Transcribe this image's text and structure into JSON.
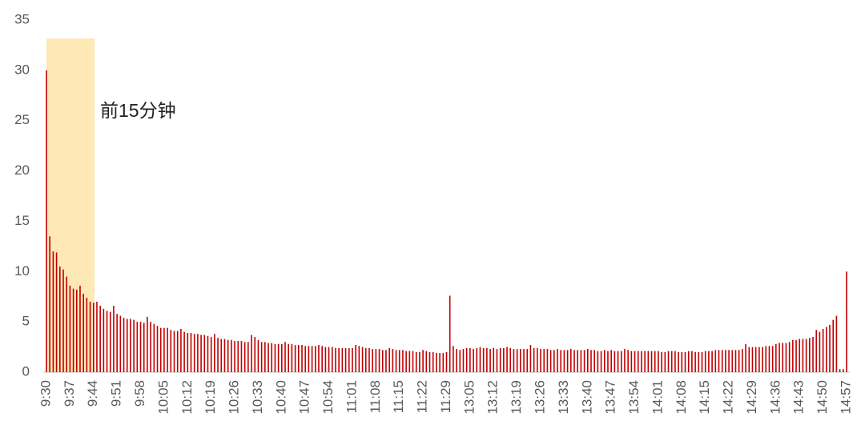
{
  "chart_data": {
    "type": "bar",
    "annotation": "前15分钟",
    "color": "#c00000",
    "categories": [
      "9:30",
      null,
      null,
      null,
      null,
      null,
      null,
      "9:37",
      null,
      null,
      null,
      null,
      null,
      null,
      "9:44",
      null,
      null,
      null,
      null,
      null,
      null,
      "9:51",
      null,
      null,
      null,
      null,
      null,
      null,
      "9:58",
      null,
      null,
      null,
      null,
      null,
      null,
      "10:05",
      null,
      null,
      null,
      null,
      null,
      null,
      "10:12",
      null,
      null,
      null,
      null,
      null,
      null,
      "10:19",
      null,
      null,
      null,
      null,
      null,
      null,
      "10:26",
      null,
      null,
      null,
      null,
      null,
      null,
      "10:33",
      null,
      null,
      null,
      null,
      null,
      null,
      "10:40",
      null,
      null,
      null,
      null,
      null,
      null,
      "10:47",
      null,
      null,
      null,
      null,
      null,
      null,
      "10:54",
      null,
      null,
      null,
      null,
      null,
      null,
      "11:01",
      null,
      null,
      null,
      null,
      null,
      null,
      "11:08",
      null,
      null,
      null,
      null,
      null,
      null,
      "11:15",
      null,
      null,
      null,
      null,
      null,
      null,
      "11:22",
      null,
      null,
      null,
      null,
      null,
      null,
      "11:29",
      null,
      null,
      null,
      null,
      null,
      null,
      "13:05",
      null,
      null,
      null,
      null,
      null,
      null,
      "13:12",
      null,
      null,
      null,
      null,
      null,
      null,
      "13:19",
      null,
      null,
      null,
      null,
      null,
      null,
      "13:26",
      null,
      null,
      null,
      null,
      null,
      null,
      "13:33",
      null,
      null,
      null,
      null,
      null,
      null,
      "13:40",
      null,
      null,
      null,
      null,
      null,
      null,
      "13:47",
      null,
      null,
      null,
      null,
      null,
      null,
      "13:54",
      null,
      null,
      null,
      null,
      null,
      null,
      "14:01",
      null,
      null,
      null,
      null,
      null,
      null,
      "14:08",
      null,
      null,
      null,
      null,
      null,
      null,
      "14:15",
      null,
      null,
      null,
      null,
      null,
      null,
      "14:22",
      null,
      null,
      null,
      null,
      null,
      null,
      "14:29",
      null,
      null,
      null,
      null,
      null,
      null,
      "14:36",
      null,
      null,
      null,
      null,
      null,
      null,
      "14:43",
      null,
      null,
      null,
      null,
      null,
      null,
      "14:50",
      null,
      null,
      null,
      null,
      null,
      null,
      "14:57"
    ],
    "values": [
      30,
      13.5,
      12,
      11.9,
      10.5,
      10.2,
      9.5,
      8.6,
      8.3,
      8.2,
      8.6,
      7.8,
      7.4,
      7.0,
      6.9,
      7.0,
      6.6,
      6.3,
      6.1,
      6.0,
      6.6,
      5.8,
      5.6,
      5.4,
      5.3,
      5.3,
      5.2,
      5.0,
      5.0,
      4.9,
      5.5,
      5.0,
      4.8,
      4.6,
      4.4,
      4.4,
      4.4,
      4.2,
      4.1,
      4.1,
      4.3,
      4.0,
      3.9,
      3.9,
      3.8,
      3.8,
      3.7,
      3.7,
      3.6,
      3.5,
      3.8,
      3.4,
      3.3,
      3.3,
      3.2,
      3.2,
      3.1,
      3.1,
      3.1,
      3.0,
      3.0,
      3.7,
      3.5,
      3.2,
      3.0,
      3.0,
      2.9,
      2.9,
      2.8,
      2.8,
      2.8,
      3.0,
      2.8,
      2.8,
      2.7,
      2.7,
      2.7,
      2.6,
      2.6,
      2.6,
      2.6,
      2.7,
      2.6,
      2.5,
      2.5,
      2.5,
      2.4,
      2.4,
      2.4,
      2.4,
      2.4,
      2.4,
      2.7,
      2.6,
      2.5,
      2.4,
      2.4,
      2.3,
      2.3,
      2.3,
      2.2,
      2.2,
      2.4,
      2.3,
      2.2,
      2.2,
      2.2,
      2.1,
      2.1,
      2.1,
      2.0,
      2.0,
      2.2,
      2.1,
      2.0,
      2.0,
      1.9,
      1.9,
      1.9,
      2.0,
      7.6,
      2.6,
      2.3,
      2.2,
      2.3,
      2.4,
      2.4,
      2.3,
      2.4,
      2.5,
      2.4,
      2.4,
      2.3,
      2.4,
      2.3,
      2.4,
      2.4,
      2.5,
      2.4,
      2.3,
      2.3,
      2.3,
      2.3,
      2.3,
      2.7,
      2.4,
      2.4,
      2.3,
      2.3,
      2.3,
      2.2,
      2.2,
      2.3,
      2.2,
      2.2,
      2.2,
      2.3,
      2.2,
      2.2,
      2.2,
      2.2,
      2.3,
      2.2,
      2.2,
      2.1,
      2.1,
      2.2,
      2.1,
      2.2,
      2.1,
      2.1,
      2.1,
      2.3,
      2.2,
      2.1,
      2.1,
      2.1,
      2.1,
      2.1,
      2.1,
      2.1,
      2.1,
      2.1,
      2.0,
      2.0,
      2.1,
      2.1,
      2.1,
      2.0,
      2.0,
      2.0,
      2.1,
      2.1,
      2.0,
      2.0,
      2.0,
      2.1,
      2.1,
      2.1,
      2.2,
      2.2,
      2.2,
      2.2,
      2.2,
      2.2,
      2.2,
      2.2,
      2.3,
      2.8,
      2.5,
      2.5,
      2.5,
      2.5,
      2.5,
      2.6,
      2.6,
      2.6,
      2.8,
      2.9,
      2.9,
      2.9,
      3.0,
      3.2,
      3.2,
      3.3,
      3.3,
      3.3,
      3.4,
      3.5,
      4.2,
      4.0,
      4.3,
      4.5,
      4.7,
      5.2,
      5.6,
      0.3,
      0.3,
      10
    ],
    "ylim": [
      0,
      35
    ],
    "yticks": [
      0,
      5,
      10,
      15,
      20,
      25,
      30,
      35
    ],
    "grid": false
  }
}
